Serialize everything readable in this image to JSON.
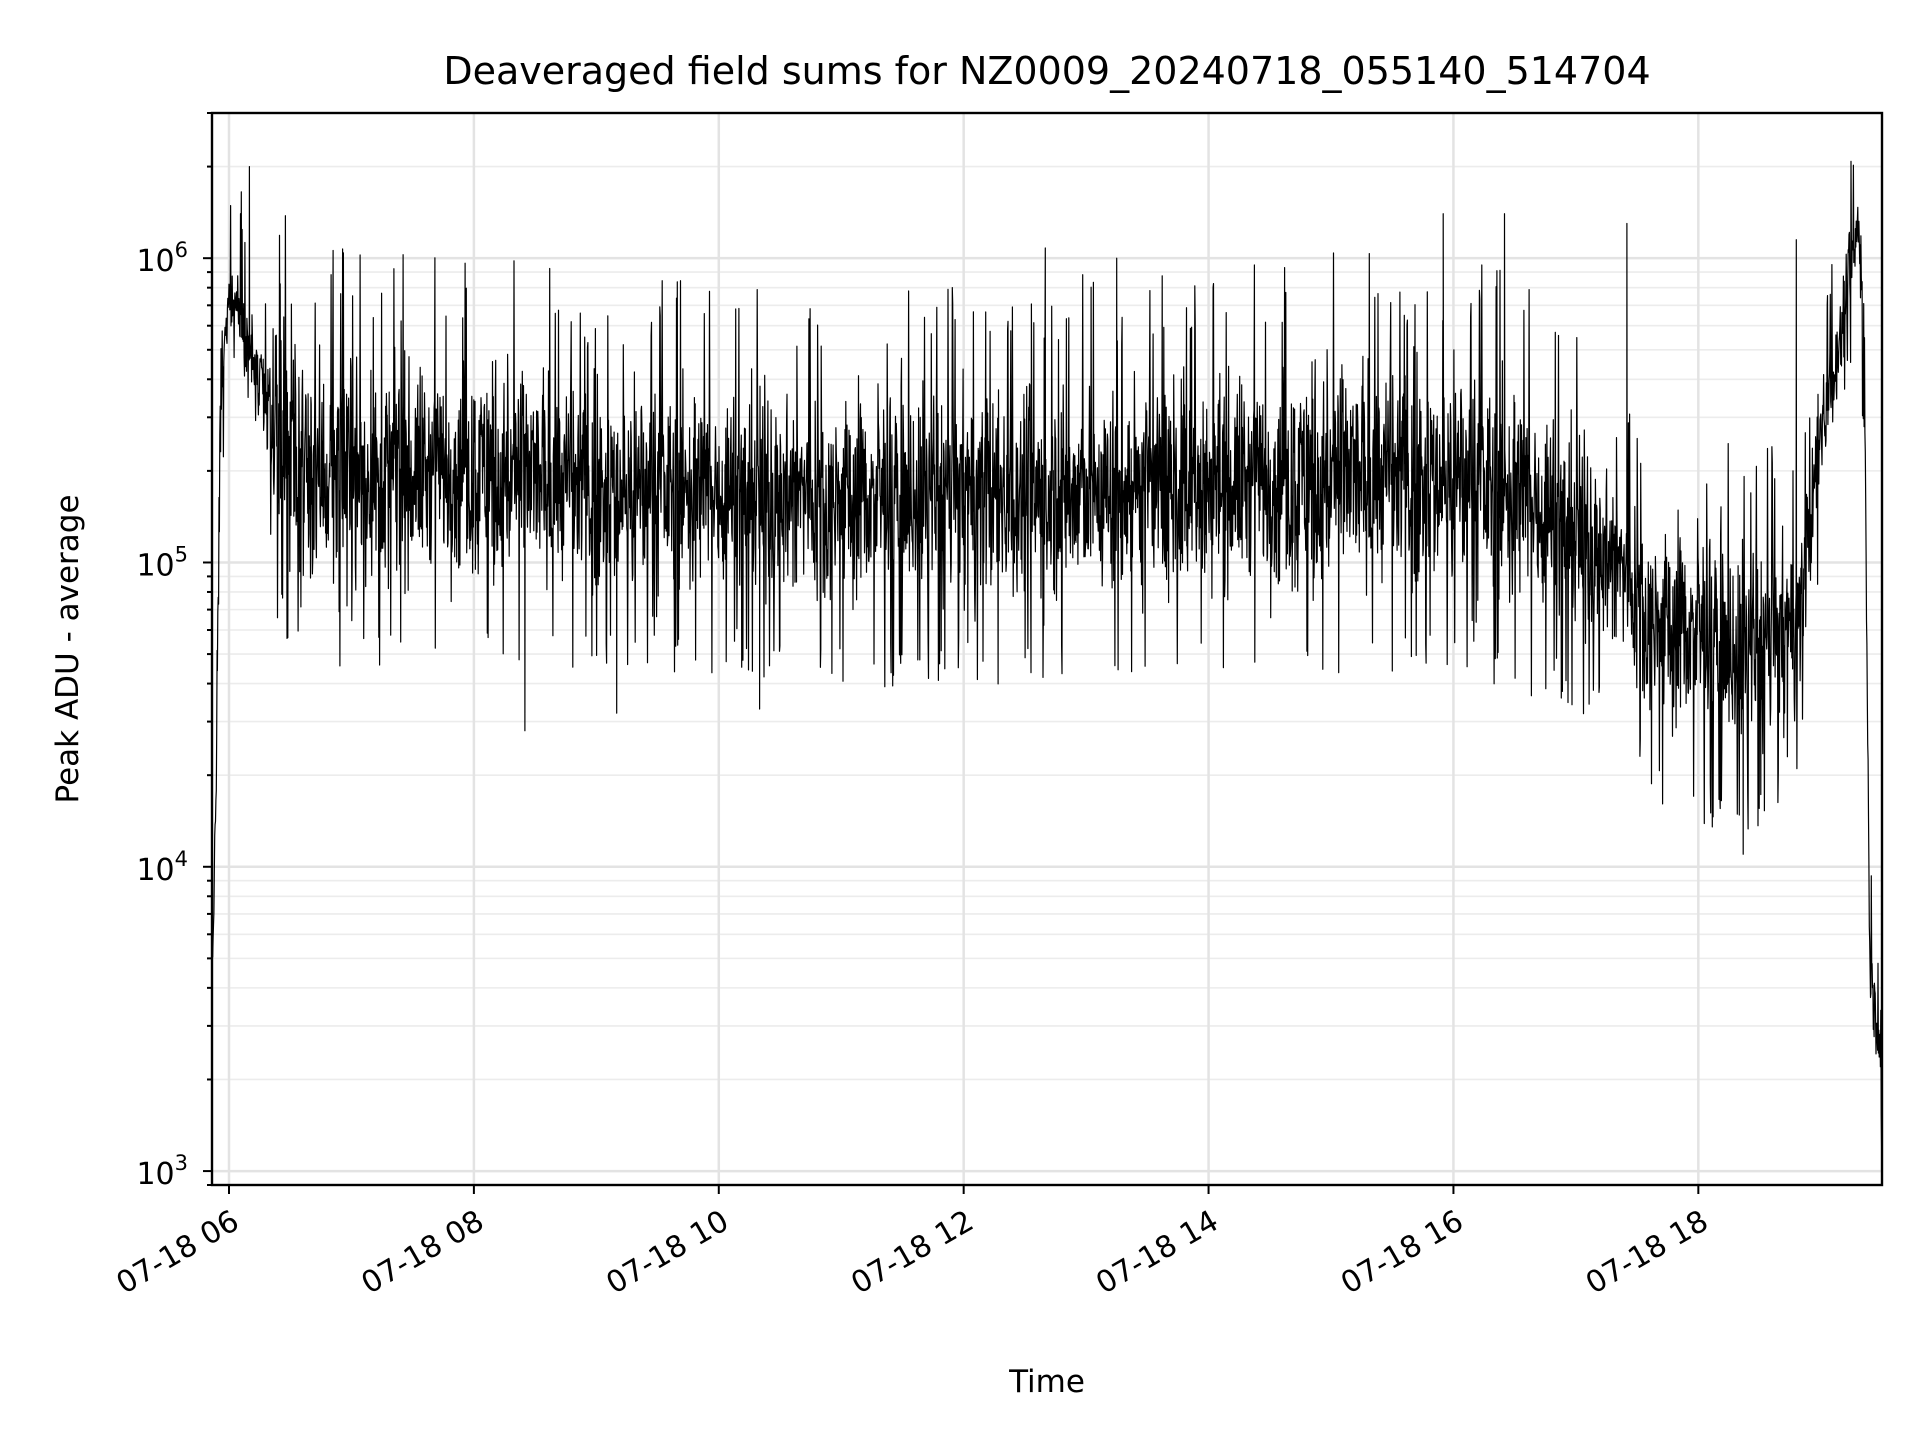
{
  "chart_data": {
    "type": "line",
    "title": "Deaveraged field sums for NZ0009_20240718_055140_514704",
    "xlabel": "Time",
    "ylabel": "Peak ADU - average",
    "xscale": "time",
    "yscale": "log",
    "xlim": [
      "2024-07-18T05:51:40",
      "2024-07-18T19:30:00"
    ],
    "ylim": [
      900,
      3000000
    ],
    "x_ticks": [
      "2024-07-18T06:00",
      "2024-07-18T08:00",
      "2024-07-18T10:00",
      "2024-07-18T12:00",
      "2024-07-18T14:00",
      "2024-07-18T16:00",
      "2024-07-18T18:00"
    ],
    "x_tick_labels": [
      "07-18 06",
      "07-18 08",
      "07-18 10",
      "07-18 12",
      "07-18 14",
      "07-18 16",
      "07-18 18"
    ],
    "y_tick_labels": [
      {
        "base": "10",
        "exp": "3",
        "value": 1000
      },
      {
        "base": "10",
        "exp": "4",
        "value": 10000
      },
      {
        "base": "10",
        "exp": "5",
        "value": 100000
      },
      {
        "base": "10",
        "exp": "6",
        "value": 1000000
      }
    ],
    "grid": true,
    "legend": "none",
    "line_color": "#000000",
    "series": [
      {
        "envelope": [
          {
            "t": "2024-07-18T05:52",
            "low": 3500,
            "high": 6000
          },
          {
            "t": "2024-07-18T05:54",
            "low": 15000,
            "high": 40000
          },
          {
            "t": "2024-07-18T05:56",
            "low": 200000,
            "high": 700000
          },
          {
            "t": "2024-07-18T06:00",
            "low": 600000,
            "high": 1000000
          },
          {
            "t": "2024-07-18T06:05",
            "low": 400000,
            "high": 1200000
          },
          {
            "t": "2024-07-18T06:15",
            "low": 200000,
            "high": 700000
          },
          {
            "t": "2024-07-18T06:20",
            "low": 150000,
            "high": 600000
          },
          {
            "t": "2024-07-18T06:25",
            "low": 60000,
            "high": 800000
          },
          {
            "t": "2024-07-18T07:00",
            "low": 60000,
            "high": 600000
          },
          {
            "t": "2024-07-18T08:00",
            "low": 70000,
            "high": 600000
          },
          {
            "t": "2024-07-18T09:00",
            "low": 60000,
            "high": 500000
          },
          {
            "t": "2024-07-18T10:00",
            "low": 60000,
            "high": 500000
          },
          {
            "t": "2024-07-18T11:00",
            "low": 55000,
            "high": 500000
          },
          {
            "t": "2024-07-18T12:00",
            "low": 55000,
            "high": 500000
          },
          {
            "t": "2024-07-18T13:00",
            "low": 55000,
            "high": 500000
          },
          {
            "t": "2024-07-18T14:00",
            "low": 60000,
            "high": 550000
          },
          {
            "t": "2024-07-18T15:00",
            "low": 60000,
            "high": 600000
          },
          {
            "t": "2024-07-18T16:00",
            "low": 60000,
            "high": 600000
          },
          {
            "t": "2024-07-18T16:40",
            "low": 50000,
            "high": 500000
          },
          {
            "t": "2024-07-18T17:00",
            "low": 45000,
            "high": 350000
          },
          {
            "t": "2024-07-18T17:20",
            "low": 40000,
            "high": 250000
          },
          {
            "t": "2024-07-18T17:40",
            "low": 22000,
            "high": 180000
          },
          {
            "t": "2024-07-18T18:00",
            "low": 20000,
            "high": 180000
          },
          {
            "t": "2024-07-18T18:20",
            "low": 17000,
            "high": 150000
          },
          {
            "t": "2024-07-18T18:40",
            "low": 20000,
            "high": 150000
          },
          {
            "t": "2024-07-18T18:50",
            "low": 30000,
            "high": 150000
          },
          {
            "t": "2024-07-18T19:00",
            "low": 150000,
            "high": 500000
          },
          {
            "t": "2024-07-18T19:10",
            "low": 350000,
            "high": 900000
          },
          {
            "t": "2024-07-18T19:15",
            "low": 600000,
            "high": 1500000
          },
          {
            "t": "2024-07-18T19:18",
            "low": 800000,
            "high": 2000000
          },
          {
            "t": "2024-07-18T19:20",
            "low": 600000,
            "high": 1500000
          },
          {
            "t": "2024-07-18T19:22",
            "low": 100000,
            "high": 300000
          },
          {
            "t": "2024-07-18T19:24",
            "low": 3000,
            "high": 8000
          },
          {
            "t": "2024-07-18T19:26",
            "low": 2500,
            "high": 5000
          },
          {
            "t": "2024-07-18T19:30",
            "low": 1500,
            "high": 4000
          }
        ],
        "spikes": [
          {
            "t": "2024-07-18T06:10",
            "v": 2000000
          },
          {
            "t": "2024-07-18T08:25",
            "v": 28000
          },
          {
            "t": "2024-07-18T09:10",
            "v": 32000
          },
          {
            "t": "2024-07-18T10:20",
            "v": 33000
          },
          {
            "t": "2024-07-18T12:40",
            "v": 1080000
          },
          {
            "t": "2024-07-18T13:15",
            "v": 1000000
          },
          {
            "t": "2024-07-18T15:55",
            "v": 1400000
          },
          {
            "t": "2024-07-18T16:25",
            "v": 1400000
          },
          {
            "t": "2024-07-18T17:25",
            "v": 1300000
          },
          {
            "t": "2024-07-18T18:22",
            "v": 11000
          },
          {
            "t": "2024-07-18T18:48",
            "v": 1150000
          }
        ]
      }
    ]
  }
}
